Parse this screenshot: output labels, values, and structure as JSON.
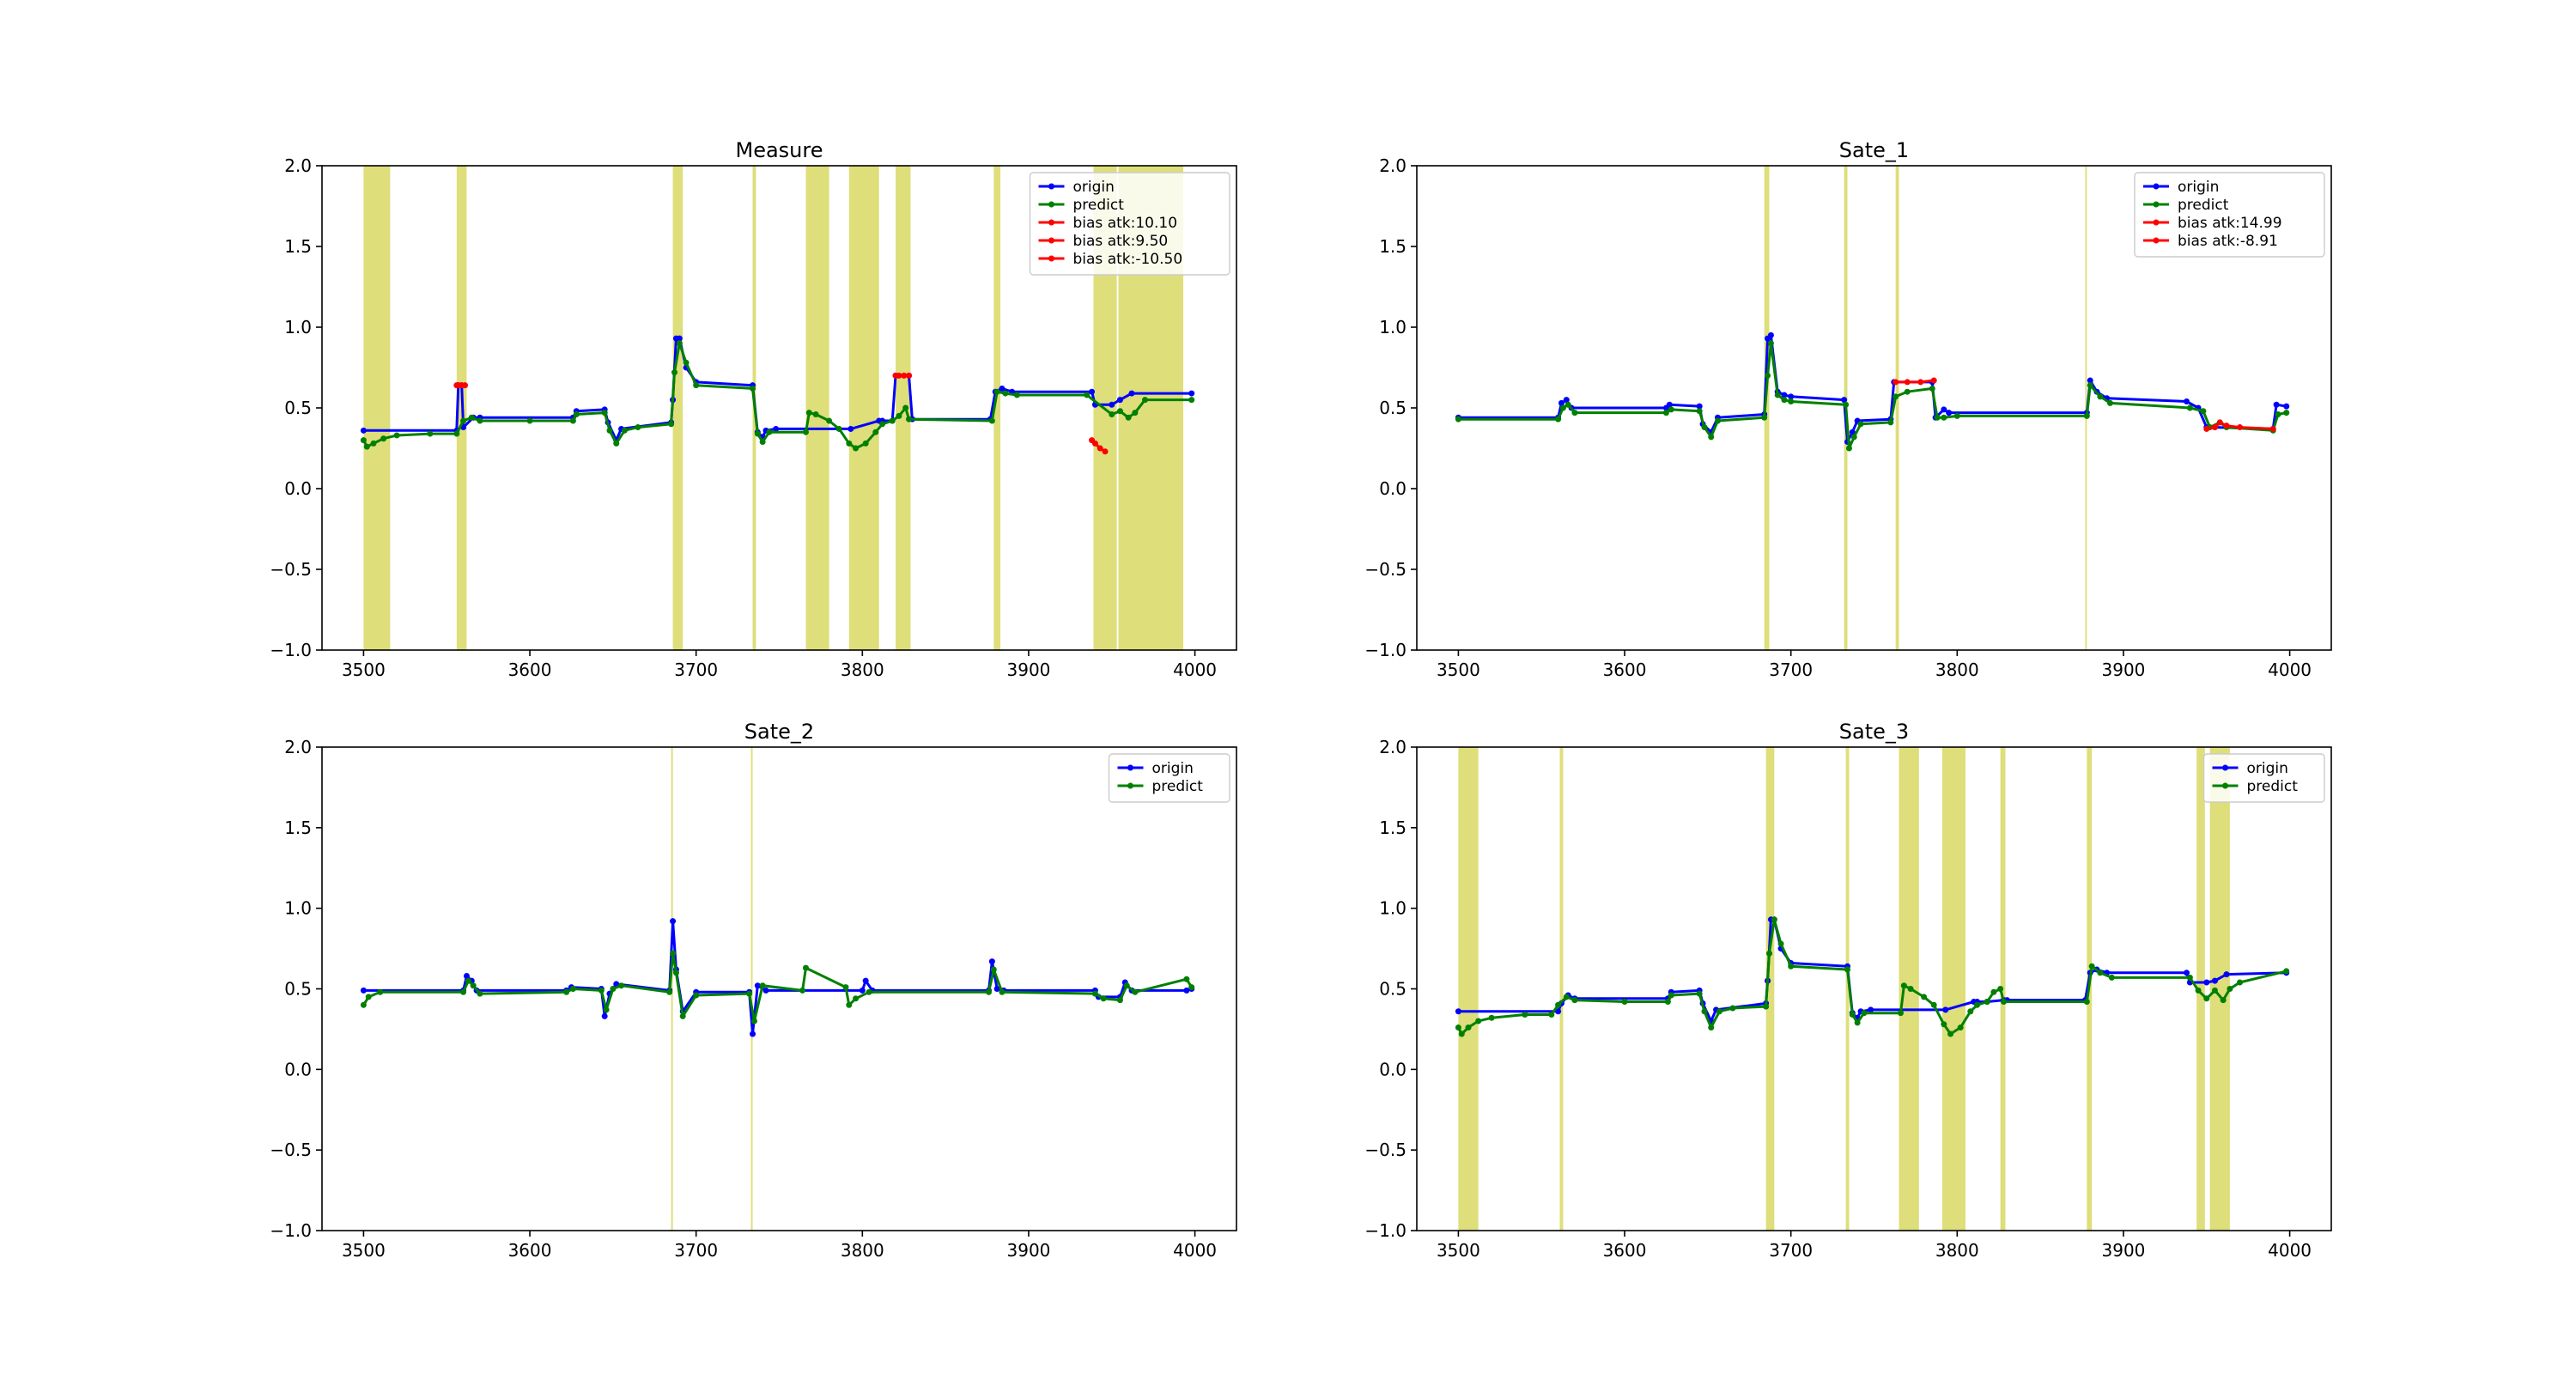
{
  "chart_data": [
    {
      "type": "line",
      "title": "Measure",
      "xlabel": "",
      "ylabel": "",
      "xlim": [
        3475,
        4025
      ],
      "ylim": [
        -1.0,
        2.0
      ],
      "xticks": [
        3500,
        3600,
        3700,
        3800,
        3900,
        4000
      ],
      "yticks": [
        -1.0,
        -0.5,
        0.0,
        0.5,
        1.0,
        1.5,
        2.0
      ],
      "legend_position": "top-right",
      "shaded_regions": [
        [
          3500,
          3516
        ],
        [
          3556,
          3562
        ],
        [
          3686,
          3692
        ],
        [
          3734,
          3736
        ],
        [
          3766,
          3780
        ],
        [
          3792,
          3810
        ],
        [
          3820,
          3829
        ],
        [
          3879,
          3883
        ],
        [
          3939,
          3953
        ],
        [
          3954,
          3993
        ]
      ],
      "series": [
        {
          "name": "origin",
          "color": "#0000ff",
          "x": [
            3500,
            3556,
            3557,
            3559,
            3560,
            3566,
            3570,
            3626,
            3628,
            3645,
            3647,
            3652,
            3655,
            3685,
            3686,
            3688,
            3690,
            3694,
            3700,
            3734,
            3737,
            3740,
            3742,
            3748,
            3793,
            3810,
            3812,
            3818,
            3820,
            3828,
            3830,
            3877,
            3880,
            3884,
            3890,
            3938,
            3940,
            3950,
            3955,
            3962,
            3998
          ],
          "values": [
            0.36,
            0.36,
            0.64,
            0.64,
            0.38,
            0.44,
            0.44,
            0.44,
            0.48,
            0.49,
            0.41,
            0.3,
            0.37,
            0.41,
            0.55,
            0.93,
            0.93,
            0.75,
            0.66,
            0.64,
            0.35,
            0.32,
            0.36,
            0.37,
            0.37,
            0.42,
            0.42,
            0.42,
            0.7,
            0.7,
            0.43,
            0.43,
            0.6,
            0.62,
            0.6,
            0.6,
            0.52,
            0.52,
            0.55,
            0.59,
            0.59
          ]
        },
        {
          "name": "predict",
          "color": "#008000",
          "x": [
            3500,
            3502,
            3506,
            3512,
            3520,
            3540,
            3556,
            3560,
            3565,
            3570,
            3600,
            3626,
            3628,
            3645,
            3648,
            3652,
            3657,
            3665,
            3685,
            3687,
            3690,
            3694,
            3700,
            3734,
            3737,
            3740,
            3744,
            3766,
            3768,
            3772,
            3780,
            3786,
            3792,
            3796,
            3802,
            3808,
            3812,
            3818,
            3822,
            3826,
            3828,
            3878,
            3881,
            3886,
            3893,
            3935,
            3950,
            3955,
            3960,
            3964,
            3970,
            3998
          ],
          "values": [
            0.3,
            0.26,
            0.28,
            0.31,
            0.33,
            0.34,
            0.34,
            0.42,
            0.44,
            0.42,
            0.42,
            0.42,
            0.46,
            0.47,
            0.36,
            0.28,
            0.36,
            0.38,
            0.4,
            0.72,
            0.9,
            0.78,
            0.64,
            0.62,
            0.34,
            0.29,
            0.35,
            0.35,
            0.47,
            0.46,
            0.42,
            0.37,
            0.28,
            0.25,
            0.28,
            0.35,
            0.4,
            0.42,
            0.45,
            0.5,
            0.43,
            0.42,
            0.6,
            0.59,
            0.58,
            0.58,
            0.46,
            0.48,
            0.44,
            0.47,
            0.55,
            0.55
          ]
        },
        {
          "name": "bias atk:10.10",
          "color": "#ff0000",
          "x": [
            3556,
            3557,
            3559,
            3561
          ],
          "values": [
            0.64,
            0.64,
            0.64,
            0.64
          ]
        },
        {
          "name": "bias atk:9.50",
          "color": "#ff0000",
          "x": [
            3820,
            3822,
            3825,
            3828
          ],
          "values": [
            0.7,
            0.7,
            0.7,
            0.7
          ]
        },
        {
          "name": "bias atk:-10.50",
          "color": "#ff0000",
          "x": [
            3938,
            3940,
            3943,
            3946
          ],
          "values": [
            0.3,
            0.28,
            0.25,
            0.23
          ]
        }
      ]
    },
    {
      "type": "line",
      "title": "Sate_1",
      "xlabel": "",
      "ylabel": "",
      "xlim": [
        3475,
        4025
      ],
      "ylim": [
        -1.0,
        2.0
      ],
      "xticks": [
        3500,
        3600,
        3700,
        3800,
        3900,
        4000
      ],
      "yticks": [
        -1.0,
        -0.5,
        0.0,
        0.5,
        1.0,
        1.5,
        2.0
      ],
      "legend_position": "top-right",
      "shaded_regions": [
        [
          3684,
          3687
        ],
        [
          3732,
          3734
        ],
        [
          3763,
          3765
        ],
        [
          3877,
          3878
        ]
      ],
      "series": [
        {
          "name": "origin",
          "color": "#0000ff",
          "x": [
            3500,
            3560,
            3562,
            3565,
            3568,
            3625,
            3627,
            3645,
            3647,
            3652,
            3656,
            3684,
            3686,
            3688,
            3692,
            3696,
            3700,
            3732,
            3734,
            3737,
            3740,
            3760,
            3762,
            3785,
            3787,
            3792,
            3795,
            3878,
            3880,
            3884,
            3890,
            3938,
            3945,
            3950,
            3955,
            3990,
            3992,
            3998
          ],
          "values": [
            0.44,
            0.44,
            0.53,
            0.55,
            0.5,
            0.5,
            0.52,
            0.51,
            0.4,
            0.35,
            0.44,
            0.46,
            0.93,
            0.95,
            0.6,
            0.58,
            0.57,
            0.55,
            0.29,
            0.35,
            0.42,
            0.43,
            0.66,
            0.66,
            0.44,
            0.49,
            0.47,
            0.47,
            0.67,
            0.6,
            0.56,
            0.54,
            0.5,
            0.38,
            0.38,
            0.37,
            0.52,
            0.51
          ]
        },
        {
          "name": "predict",
          "color": "#008000",
          "x": [
            3500,
            3560,
            3563,
            3566,
            3570,
            3625,
            3628,
            3645,
            3648,
            3652,
            3656,
            3684,
            3686,
            3688,
            3692,
            3696,
            3700,
            3733,
            3735,
            3738,
            3742,
            3760,
            3763,
            3770,
            3785,
            3788,
            3792,
            3800,
            3878,
            3880,
            3886,
            3892,
            3940,
            3948,
            3952,
            3958,
            3962,
            3990,
            3993,
            3998
          ],
          "values": [
            0.43,
            0.43,
            0.5,
            0.52,
            0.47,
            0.47,
            0.49,
            0.48,
            0.38,
            0.32,
            0.42,
            0.44,
            0.7,
            0.9,
            0.58,
            0.55,
            0.54,
            0.52,
            0.25,
            0.32,
            0.4,
            0.41,
            0.57,
            0.6,
            0.62,
            0.44,
            0.44,
            0.45,
            0.45,
            0.64,
            0.57,
            0.53,
            0.5,
            0.48,
            0.38,
            0.41,
            0.38,
            0.36,
            0.46,
            0.47
          ]
        },
        {
          "name": "bias atk:14.99",
          "color": "#ff0000",
          "x": [
            3763,
            3770,
            3778,
            3786
          ],
          "values": [
            0.66,
            0.66,
            0.66,
            0.67
          ]
        },
        {
          "name": "bias atk:-8.91",
          "color": "#ff0000",
          "x": [
            3950,
            3955,
            3958,
            3962,
            3970,
            3990
          ],
          "values": [
            0.37,
            0.38,
            0.41,
            0.39,
            0.38,
            0.37
          ]
        }
      ]
    },
    {
      "type": "line",
      "title": "Sate_2",
      "xlabel": "",
      "ylabel": "",
      "xlim": [
        3475,
        4025
      ],
      "ylim": [
        -1.0,
        2.0
      ],
      "xticks": [
        3500,
        3600,
        3700,
        3800,
        3900,
        4000
      ],
      "yticks": [
        -1.0,
        -0.5,
        0.0,
        0.5,
        1.0,
        1.5,
        2.0
      ],
      "legend_position": "top-right",
      "shaded_regions": [
        [
          3685,
          3686
        ],
        [
          3733,
          3734
        ]
      ],
      "series": [
        {
          "name": "origin",
          "color": "#0000ff",
          "x": [
            3500,
            3560,
            3562,
            3565,
            3568,
            3622,
            3625,
            3643,
            3645,
            3648,
            3652,
            3684,
            3686,
            3688,
            3692,
            3700,
            3732,
            3734,
            3737,
            3742,
            3800,
            3802,
            3806,
            3876,
            3878,
            3881,
            3885,
            3940,
            3942,
            3955,
            3958,
            3962,
            3995,
            3998
          ],
          "values": [
            0.49,
            0.49,
            0.58,
            0.55,
            0.49,
            0.49,
            0.51,
            0.5,
            0.33,
            0.47,
            0.53,
            0.49,
            0.92,
            0.62,
            0.36,
            0.48,
            0.48,
            0.22,
            0.52,
            0.49,
            0.49,
            0.55,
            0.49,
            0.49,
            0.67,
            0.5,
            0.49,
            0.49,
            0.45,
            0.45,
            0.54,
            0.49,
            0.49,
            0.5
          ]
        },
        {
          "name": "predict",
          "color": "#008000",
          "x": [
            3500,
            3503,
            3510,
            3560,
            3563,
            3566,
            3570,
            3622,
            3626,
            3643,
            3646,
            3650,
            3655,
            3684,
            3686,
            3688,
            3692,
            3700,
            3732,
            3735,
            3740,
            3764,
            3766,
            3790,
            3792,
            3796,
            3804,
            3876,
            3879,
            3884,
            3940,
            3945,
            3955,
            3959,
            3964,
            3995,
            3998
          ],
          "values": [
            0.4,
            0.45,
            0.48,
            0.48,
            0.55,
            0.52,
            0.47,
            0.48,
            0.5,
            0.49,
            0.37,
            0.5,
            0.52,
            0.48,
            0.72,
            0.6,
            0.33,
            0.46,
            0.47,
            0.3,
            0.52,
            0.49,
            0.63,
            0.51,
            0.4,
            0.44,
            0.48,
            0.48,
            0.62,
            0.48,
            0.47,
            0.44,
            0.43,
            0.52,
            0.48,
            0.56,
            0.51
          ]
        }
      ]
    },
    {
      "type": "line",
      "title": "Sate_3",
      "xlabel": "",
      "ylabel": "",
      "xlim": [
        3475,
        4025
      ],
      "ylim": [
        -1.0,
        2.0
      ],
      "xticks": [
        3500,
        3600,
        3700,
        3800,
        3900,
        4000
      ],
      "yticks": [
        -1.0,
        -0.5,
        0.0,
        0.5,
        1.0,
        1.5,
        2.0
      ],
      "legend_position": "top-right",
      "shaded_regions": [
        [
          3500,
          3512
        ],
        [
          3561,
          3563
        ],
        [
          3685,
          3690
        ],
        [
          3733,
          3735
        ],
        [
          3765,
          3777
        ],
        [
          3791,
          3805
        ],
        [
          3826,
          3829
        ],
        [
          3878,
          3881
        ],
        [
          3944,
          3949
        ],
        [
          3952,
          3964
        ]
      ],
      "series": [
        {
          "name": "origin",
          "color": "#0000ff",
          "x": [
            3500,
            3560,
            3562,
            3566,
            3570,
            3626,
            3628,
            3645,
            3647,
            3652,
            3655,
            3685,
            3686,
            3688,
            3690,
            3694,
            3700,
            3734,
            3737,
            3740,
            3742,
            3748,
            3793,
            3810,
            3812,
            3818,
            3828,
            3830,
            3877,
            3880,
            3884,
            3890,
            3938,
            3940,
            3950,
            3955,
            3962,
            3998
          ],
          "values": [
            0.36,
            0.36,
            0.41,
            0.46,
            0.44,
            0.44,
            0.48,
            0.49,
            0.41,
            0.3,
            0.37,
            0.41,
            0.55,
            0.93,
            0.93,
            0.75,
            0.66,
            0.64,
            0.35,
            0.32,
            0.36,
            0.37,
            0.37,
            0.42,
            0.42,
            0.42,
            0.43,
            0.43,
            0.43,
            0.6,
            0.62,
            0.6,
            0.6,
            0.54,
            0.54,
            0.55,
            0.59,
            0.6
          ]
        },
        {
          "name": "predict",
          "color": "#008000",
          "x": [
            3500,
            3502,
            3506,
            3512,
            3520,
            3540,
            3556,
            3560,
            3565,
            3570,
            3600,
            3626,
            3628,
            3645,
            3648,
            3652,
            3657,
            3665,
            3685,
            3687,
            3690,
            3694,
            3700,
            3734,
            3737,
            3740,
            3744,
            3766,
            3768,
            3772,
            3780,
            3786,
            3792,
            3796,
            3802,
            3808,
            3812,
            3818,
            3822,
            3826,
            3828,
            3878,
            3881,
            3886,
            3893,
            3940,
            3945,
            3950,
            3955,
            3960,
            3964,
            3970,
            3998
          ],
          "values": [
            0.26,
            0.22,
            0.26,
            0.3,
            0.32,
            0.34,
            0.34,
            0.4,
            0.45,
            0.43,
            0.42,
            0.42,
            0.46,
            0.47,
            0.36,
            0.26,
            0.36,
            0.38,
            0.39,
            0.72,
            0.93,
            0.78,
            0.64,
            0.62,
            0.34,
            0.29,
            0.35,
            0.35,
            0.52,
            0.5,
            0.45,
            0.4,
            0.28,
            0.22,
            0.26,
            0.36,
            0.4,
            0.42,
            0.48,
            0.5,
            0.42,
            0.42,
            0.64,
            0.6,
            0.57,
            0.57,
            0.49,
            0.44,
            0.49,
            0.43,
            0.5,
            0.54,
            0.61
          ]
        }
      ]
    }
  ]
}
